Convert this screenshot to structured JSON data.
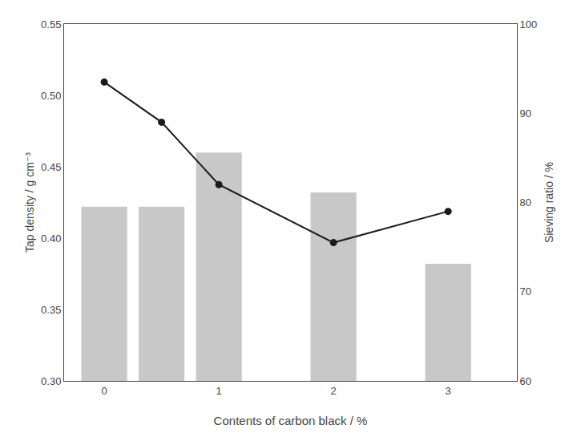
{
  "chart_data": {
    "type": "combo",
    "x": [
      0,
      0.5,
      1,
      2,
      3
    ],
    "xlabel": "Contents of carbon black / %",
    "ylabel": "Tap density / g cm⁻³",
    "y2label": "Sieving ratio / %",
    "xlim": [
      -0.35,
      3.6
    ],
    "xticks": [
      0,
      1,
      2,
      3
    ],
    "ylim": [
      0.3,
      0.55
    ],
    "yticks": [
      {
        "value": 0.3,
        "label": "0.30"
      },
      {
        "value": 0.35,
        "label": "0.35"
      },
      {
        "value": 0.4,
        "label": "0.40"
      },
      {
        "value": 0.45,
        "label": "0.45"
      },
      {
        "value": 0.5,
        "label": "0.50"
      },
      {
        "value": 0.55,
        "label": "0.55"
      }
    ],
    "y2lim": [
      60,
      100
    ],
    "y2ticks": [
      60,
      70,
      80,
      90,
      100
    ],
    "grid": false,
    "series": [
      {
        "type": "bar",
        "color": "#c8c8c8",
        "values": [
          0.422,
          0.422,
          0.46,
          0.432,
          0.382
        ]
      },
      {
        "type": "line",
        "axis": "y2",
        "color": "#1a1a1a",
        "marker": "circle",
        "values": [
          93.5,
          89.0,
          82.0,
          75.5,
          79.0
        ]
      }
    ]
  }
}
